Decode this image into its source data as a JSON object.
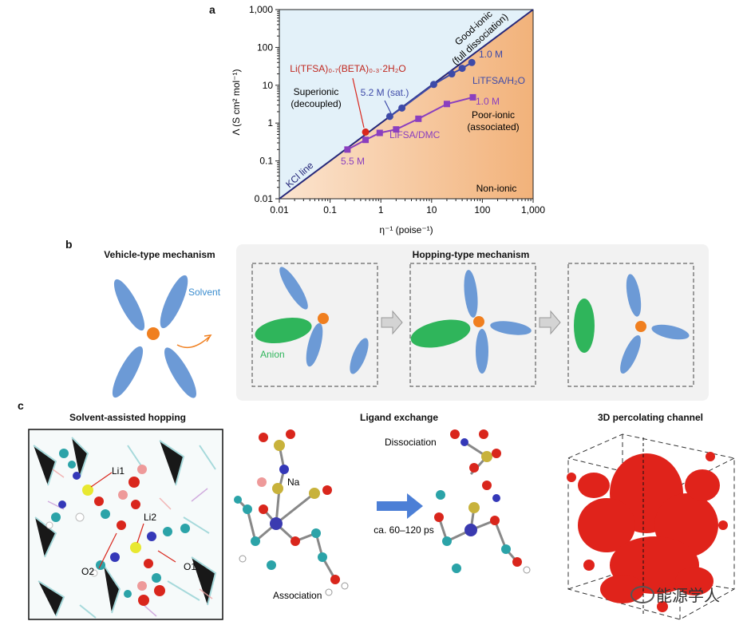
{
  "panels": {
    "a": "a",
    "b": "b",
    "c": "c"
  },
  "chart_data": {
    "type": "scatter",
    "xscale": "log",
    "yscale": "log",
    "xlim": [
      0.01,
      1000
    ],
    "ylim": [
      0.01,
      1000
    ],
    "xlabel": "η⁻¹ (poise⁻¹)",
    "ylabel": "Λ (S cm² mol⁻¹)",
    "xticks": [
      "0.01",
      "0.1",
      "1",
      "10",
      "100",
      "1,000"
    ],
    "yticks": [
      "0.01",
      "0.1",
      "1",
      "10",
      "100",
      "1,000"
    ],
    "grid": false,
    "reference_line": {
      "name": "KCl line",
      "x": [
        0.01,
        1000
      ],
      "y": [
        0.01,
        1000
      ]
    },
    "series": [
      {
        "name": "LiTFSA/H2O",
        "marker": "circle",
        "color": "#3d4aa8",
        "x": [
          1.5,
          2.6,
          11,
          25,
          40,
          62
        ],
        "y": [
          1.5,
          2.5,
          10.5,
          20,
          28,
          40
        ]
      },
      {
        "name": "LiFSA/DMC",
        "marker": "square",
        "color": "#8a3fbf",
        "x": [
          0.22,
          0.5,
          0.95,
          2.0,
          5.5,
          20,
          65
        ],
        "y": [
          0.2,
          0.36,
          0.55,
          0.68,
          1.3,
          3.2,
          4.8
        ]
      },
      {
        "name": "Li(TFSA)0.7(BETA)0.3·2H2O",
        "marker": "circle",
        "color": "#d9261c",
        "x": [
          0.5
        ],
        "y": [
          0.58
        ]
      }
    ],
    "annotations": {
      "good_ionic_1": "Good-ionic",
      "good_ionic_2": "(full dissociation)",
      "superionic_1": "Superionic",
      "superionic_2": "(decoupled)",
      "poor_ionic_1": "Poor-ionic",
      "poor_ionic_2": "(associated)",
      "non_ionic": "Non-ionic",
      "kcl": "KCl line",
      "sat": "5.2 M (sat.)",
      "m10_a": "1.0 M",
      "m10_b": "1.0 M",
      "m55": "5.5 M",
      "litfsa": "LiTFSA/H₂O",
      "lifsa": "LiFSA/DMC",
      "li_beta": "Li(TFSA)₀.₇(BETA)₀.₃·2H₂O"
    },
    "colors": {
      "superionic_region": "#e3f1f9",
      "poor_region": "#f6c89a",
      "kcl_line": "#26287a"
    }
  },
  "mechanisms": {
    "vehicle_title": "Vehicle-type mechanism",
    "hopping_title": "Hopping-type mechanism",
    "solvent": "Solvent",
    "anion": "Anion",
    "colors": {
      "solvent": "#6c9ad6",
      "anion": "#2fb55b",
      "cation": "#f07f1f",
      "arrow": "#c8c8c8"
    }
  },
  "structures": {
    "solvent_assisted_title": "Solvent-assisted hopping",
    "ligand_exchange_title": "Ligand exchange",
    "percolating_title": "3D percolating channel",
    "li1": "Li1",
    "li2": "Li2",
    "o1": "O1",
    "o2": "O2",
    "na": "Na",
    "dissociation": "Dissociation",
    "association": "Association",
    "time": "ca. 60–120 ps"
  },
  "watermark": "能源学人"
}
